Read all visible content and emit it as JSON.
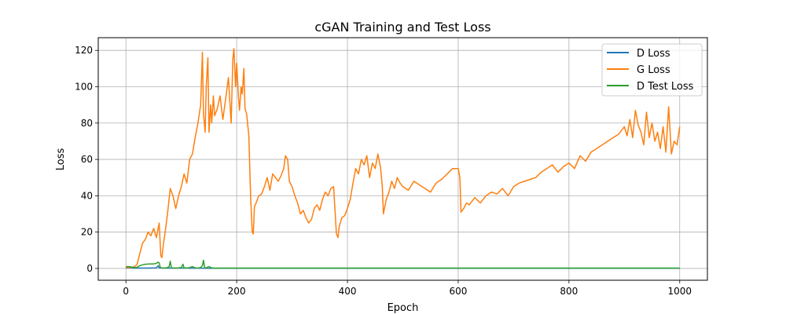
{
  "chart_data": {
    "type": "line",
    "title": "cGAN Training and Test Loss",
    "xlabel": "Epoch",
    "ylabel": "Loss",
    "xlim": [
      -50,
      1050
    ],
    "ylim": [
      -6.5,
      127
    ],
    "xticks": [
      0,
      200,
      400,
      600,
      800,
      1000
    ],
    "yticks": [
      0,
      20,
      40,
      60,
      80,
      100,
      120
    ],
    "grid": true,
    "legend_position": "top-right",
    "series": [
      {
        "name": "D Loss",
        "color": "#1f77b4",
        "x": [
          0,
          20,
          40,
          55,
          58,
          60,
          62,
          70,
          80,
          100,
          150,
          200,
          300,
          400,
          500,
          600,
          700,
          800,
          900,
          1000
        ],
        "y": [
          0.3,
          0.2,
          0.2,
          0.3,
          1.5,
          0.3,
          0.3,
          0.2,
          0.2,
          0.2,
          0.1,
          0.1,
          0.1,
          0.1,
          0.1,
          0.1,
          0.1,
          0.1,
          0.1,
          0.1
        ]
      },
      {
        "name": "G Loss",
        "color": "#ff7f0e",
        "x": [
          0,
          10,
          15,
          20,
          25,
          30,
          35,
          40,
          45,
          50,
          55,
          60,
          63,
          65,
          68,
          70,
          75,
          80,
          85,
          90,
          95,
          100,
          105,
          110,
          115,
          120,
          125,
          130,
          135,
          138,
          140,
          143,
          145,
          148,
          150,
          153,
          155,
          158,
          160,
          165,
          170,
          175,
          180,
          185,
          190,
          193,
          195,
          198,
          200,
          203,
          205,
          208,
          210,
          213,
          215,
          218,
          222,
          225,
          228,
          230,
          232,
          235,
          240,
          245,
          250,
          255,
          260,
          265,
          270,
          275,
          280,
          285,
          288,
          292,
          295,
          300,
          305,
          310,
          315,
          320,
          325,
          330,
          335,
          340,
          345,
          350,
          355,
          360,
          365,
          370,
          375,
          378,
          380,
          383,
          385,
          390,
          395,
          400,
          405,
          410,
          415,
          420,
          425,
          430,
          435,
          440,
          445,
          450,
          455,
          460,
          463,
          465,
          470,
          475,
          480,
          485,
          490,
          495,
          500,
          510,
          520,
          530,
          540,
          550,
          560,
          570,
          580,
          590,
          600,
          603,
          605,
          610,
          615,
          620,
          630,
          640,
          650,
          660,
          670,
          680,
          690,
          700,
          710,
          720,
          730,
          740,
          750,
          760,
          770,
          780,
          790,
          800,
          810,
          820,
          830,
          840,
          850,
          860,
          870,
          880,
          890,
          900,
          905,
          910,
          915,
          920,
          925,
          930,
          935,
          940,
          945,
          950,
          955,
          960,
          965,
          970,
          975,
          980,
          985,
          990,
          995,
          1000
        ],
        "y": [
          0.5,
          0.5,
          1.0,
          2.0,
          8.0,
          14.0,
          16.0,
          20.0,
          18.0,
          22.0,
          17.0,
          25.0,
          7.0,
          6.0,
          14.0,
          18.0,
          30.0,
          44.0,
          40.0,
          33.0,
          40.0,
          45.0,
          52.0,
          47.0,
          60.0,
          63.0,
          72.0,
          80.0,
          90.0,
          119.0,
          85.0,
          75.0,
          100.0,
          116.0,
          75.0,
          90.0,
          80.0,
          95.0,
          84.0,
          88.0,
          95.0,
          82.0,
          93.0,
          105.0,
          80.0,
          115.0,
          121.0,
          100.0,
          113.0,
          95.0,
          87.0,
          100.0,
          96.0,
          110.0,
          88.0,
          85.0,
          73.0,
          40.0,
          20.0,
          19.0,
          34.0,
          36.0,
          40.0,
          41.0,
          45.0,
          50.0,
          43.0,
          52.0,
          50.0,
          48.0,
          51.0,
          55.0,
          62.0,
          60.0,
          48.0,
          45.0,
          40.0,
          36.0,
          30.0,
          32.0,
          28.0,
          25.0,
          27.0,
          33.0,
          35.0,
          32.0,
          38.0,
          42.0,
          40.0,
          44.0,
          45.0,
          30.0,
          19.0,
          17.0,
          23.0,
          28.0,
          29.0,
          33.0,
          38.0,
          47.0,
          55.0,
          52.0,
          60.0,
          57.0,
          62.0,
          50.0,
          58.0,
          55.0,
          63.0,
          55.0,
          45.0,
          30.0,
          38.0,
          42.0,
          48.0,
          44.0,
          50.0,
          47.0,
          45.0,
          43.0,
          48.0,
          46.0,
          44.0,
          42.0,
          47.0,
          49.0,
          52.0,
          55.0,
          55.0,
          50.0,
          31.0,
          33.0,
          36.0,
          35.0,
          39.0,
          36.0,
          40.0,
          42.0,
          41.0,
          44.0,
          40.0,
          45.0,
          47.0,
          48.0,
          49.0,
          50.0,
          53.0,
          55.0,
          57.0,
          53.0,
          56.0,
          58.0,
          55.0,
          62.0,
          59.0,
          64.0,
          66.0,
          68.0,
          70.0,
          72.0,
          74.0,
          78.0,
          73.0,
          82.0,
          72.0,
          87.0,
          79.0,
          75.0,
          68.0,
          86.0,
          72.0,
          80.0,
          70.0,
          75.0,
          66.0,
          78.0,
          64.0,
          89.0,
          63.0,
          70.0,
          68.0,
          78.0
        ]
      },
      {
        "name": "D Test Loss",
        "color": "#2ca02c",
        "x": [
          0,
          5,
          10,
          15,
          20,
          25,
          30,
          35,
          40,
          45,
          50,
          55,
          58,
          60,
          62,
          65,
          70,
          75,
          78,
          80,
          82,
          85,
          90,
          95,
          100,
          103,
          105,
          108,
          110,
          115,
          120,
          125,
          130,
          135,
          138,
          140,
          142,
          145,
          148,
          150,
          155,
          160,
          165,
          170,
          200,
          300,
          400,
          500,
          600,
          700,
          800,
          900,
          1000
        ],
        "y": [
          1.0,
          1.0,
          0.8,
          0.5,
          0.6,
          1.5,
          2.0,
          2.3,
          2.4,
          2.5,
          2.5,
          2.8,
          3.5,
          3.0,
          0.5,
          0.3,
          0.2,
          0.5,
          1.0,
          4.0,
          0.4,
          0.2,
          0.2,
          0.3,
          0.5,
          2.3,
          0.3,
          0.3,
          0.2,
          0.5,
          1.0,
          0.3,
          0.2,
          0.5,
          1.5,
          4.5,
          0.5,
          0.3,
          0.8,
          1.0,
          0.3,
          0.2,
          0.2,
          0.2,
          0.2,
          0.2,
          0.2,
          0.2,
          0.2,
          0.2,
          0.2,
          0.2,
          0.2
        ]
      }
    ]
  }
}
